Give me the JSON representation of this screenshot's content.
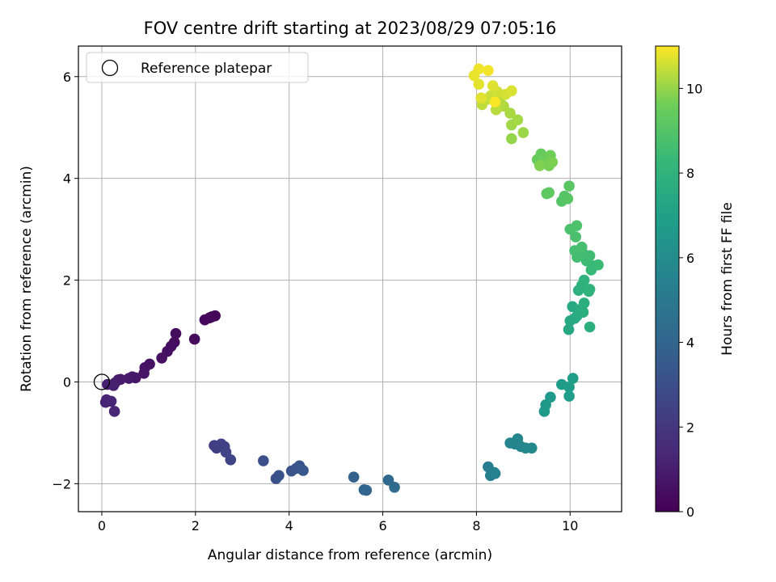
{
  "chart_data": {
    "type": "scatter",
    "title": "FOV centre drift starting at 2023/08/29 07:05:16",
    "xlabel": "Angular distance from reference (arcmin)",
    "ylabel": "Rotation from reference (arcmin)",
    "colorbar_label": "Hours from first FF file",
    "xlim": [
      -0.5,
      11.1
    ],
    "ylim": [
      -2.55,
      6.6
    ],
    "xticks": [
      0,
      2,
      4,
      6,
      8,
      10
    ],
    "yticks": [
      -2,
      0,
      2,
      4,
      6
    ],
    "colorbar_range": [
      0,
      11
    ],
    "colorbar_ticks": [
      0,
      2,
      4,
      6,
      8,
      10
    ],
    "colormap": "viridis",
    "grid": true,
    "legend": {
      "location": "upper-left",
      "entries": [
        {
          "label": "Reference platepar",
          "marker": "hollow-circle",
          "x": 0,
          "y": 0
        }
      ]
    },
    "series": [
      {
        "points": [
          [
            2.42,
            1.3,
            0.1
          ],
          [
            2.35,
            1.28,
            0.15
          ],
          [
            2.3,
            1.26,
            0.2
          ],
          [
            2.2,
            1.22,
            0.25
          ],
          [
            1.98,
            0.84,
            0.3
          ],
          [
            1.58,
            0.95,
            0.35
          ],
          [
            1.55,
            0.78,
            0.4
          ],
          [
            1.48,
            0.7,
            0.45
          ],
          [
            1.4,
            0.6,
            0.5
          ],
          [
            1.28,
            0.47,
            0.55
          ],
          [
            1.02,
            0.35,
            0.6
          ],
          [
            0.92,
            0.28,
            0.65
          ],
          [
            0.9,
            0.17,
            0.7
          ],
          [
            0.72,
            0.08,
            0.75
          ],
          [
            0.65,
            0.1,
            0.8
          ],
          [
            0.58,
            0.07,
            0.85
          ],
          [
            0.4,
            0.05,
            0.9
          ],
          [
            0.35,
            0.04,
            0.95
          ],
          [
            0.28,
            -0.02,
            1.0
          ],
          [
            0.25,
            -0.07,
            1.05
          ],
          [
            0.12,
            -0.05,
            1.1
          ],
          [
            0.08,
            -0.4,
            1.2
          ],
          [
            0.1,
            -0.35,
            1.25
          ],
          [
            0.2,
            -0.38,
            1.3
          ],
          [
            0.27,
            -0.58,
            1.35
          ],
          [
            2.4,
            -1.25,
            2.3
          ],
          [
            2.45,
            -1.3,
            2.35
          ],
          [
            2.55,
            -1.22,
            2.4
          ],
          [
            2.62,
            -1.27,
            2.45
          ],
          [
            2.65,
            -1.38,
            2.5
          ],
          [
            2.75,
            -1.53,
            2.55
          ],
          [
            3.45,
            -1.55,
            3.0
          ],
          [
            3.72,
            -1.9,
            3.1
          ],
          [
            3.78,
            -1.84,
            3.15
          ],
          [
            4.05,
            -1.75,
            3.2
          ],
          [
            4.15,
            -1.7,
            3.25
          ],
          [
            4.22,
            -1.65,
            3.3
          ],
          [
            4.3,
            -1.74,
            3.35
          ],
          [
            5.38,
            -1.87,
            3.9
          ],
          [
            5.6,
            -2.12,
            4.0
          ],
          [
            5.65,
            -2.13,
            4.05
          ],
          [
            6.12,
            -1.93,
            4.2
          ],
          [
            6.25,
            -2.07,
            4.3
          ],
          [
            8.25,
            -1.67,
            5.3
          ],
          [
            8.3,
            -1.84,
            5.35
          ],
          [
            8.4,
            -1.8,
            5.4
          ],
          [
            8.38,
            -1.78,
            5.45
          ],
          [
            8.72,
            -1.2,
            5.6
          ],
          [
            8.82,
            -1.22,
            5.65
          ],
          [
            8.88,
            -1.12,
            5.7
          ],
          [
            8.95,
            -1.27,
            5.75
          ],
          [
            9.05,
            -1.3,
            5.8
          ],
          [
            9.18,
            -1.3,
            5.85
          ],
          [
            9.45,
            -0.58,
            6.6
          ],
          [
            9.48,
            -0.45,
            6.65
          ],
          [
            9.58,
            -0.3,
            6.7
          ],
          [
            9.82,
            -0.05,
            6.8
          ],
          [
            9.98,
            -0.1,
            6.85
          ],
          [
            9.98,
            -0.28,
            6.9
          ],
          [
            10.06,
            0.07,
            6.95
          ],
          [
            9.97,
            1.03,
            7.4
          ],
          [
            10.0,
            1.2,
            7.45
          ],
          [
            10.05,
            1.48,
            7.5
          ],
          [
            10.1,
            1.25,
            7.55
          ],
          [
            10.15,
            1.3,
            7.6
          ],
          [
            10.2,
            1.42,
            7.65
          ],
          [
            10.28,
            1.37,
            7.7
          ],
          [
            10.3,
            1.55,
            7.75
          ],
          [
            10.42,
            1.08,
            7.8
          ],
          [
            10.18,
            1.8,
            7.85
          ],
          [
            10.25,
            1.9,
            7.9
          ],
          [
            10.3,
            2.0,
            7.95
          ],
          [
            10.4,
            1.78,
            8.0
          ],
          [
            10.42,
            1.82,
            8.05
          ],
          [
            10.5,
            2.28,
            8.3
          ],
          [
            10.45,
            2.2,
            8.35
          ],
          [
            10.6,
            2.3,
            8.4
          ],
          [
            10.35,
            2.38,
            8.45
          ],
          [
            10.42,
            2.48,
            8.5
          ],
          [
            10.28,
            2.52,
            8.55
          ],
          [
            10.15,
            2.45,
            8.6
          ],
          [
            10.1,
            2.58,
            8.65
          ],
          [
            10.25,
            2.65,
            8.7
          ],
          [
            10.12,
            2.85,
            8.75
          ],
          [
            10.0,
            3.0,
            8.8
          ],
          [
            10.14,
            3.07,
            8.85
          ],
          [
            9.82,
            3.55,
            9.0
          ],
          [
            9.88,
            3.65,
            9.05
          ],
          [
            9.95,
            3.6,
            9.1
          ],
          [
            9.98,
            3.85,
            9.15
          ],
          [
            9.5,
            3.7,
            9.2
          ],
          [
            9.55,
            3.72,
            9.25
          ],
          [
            9.3,
            4.37,
            9.4
          ],
          [
            9.38,
            4.48,
            9.45
          ],
          [
            9.45,
            4.4,
            9.5
          ],
          [
            9.52,
            4.3,
            9.55
          ],
          [
            9.58,
            4.45,
            9.6
          ],
          [
            9.4,
            4.28,
            9.65
          ],
          [
            9.55,
            4.25,
            9.7
          ],
          [
            9.62,
            4.32,
            9.75
          ],
          [
            9.35,
            4.25,
            9.8
          ],
          [
            8.75,
            4.78,
            10.0
          ],
          [
            9.0,
            4.9,
            10.05
          ],
          [
            8.75,
            5.05,
            10.1
          ],
          [
            8.88,
            5.15,
            10.15
          ],
          [
            8.72,
            5.28,
            10.2
          ],
          [
            8.58,
            5.42,
            10.25
          ],
          [
            8.5,
            5.5,
            10.3
          ],
          [
            8.42,
            5.35,
            10.35
          ],
          [
            8.12,
            5.45,
            10.4
          ],
          [
            8.22,
            5.55,
            10.45
          ],
          [
            8.3,
            5.62,
            10.5
          ],
          [
            8.45,
            5.7,
            10.55
          ],
          [
            8.62,
            5.65,
            10.6
          ],
          [
            8.75,
            5.72,
            10.65
          ],
          [
            8.35,
            5.82,
            10.7
          ],
          [
            8.1,
            5.58,
            10.72
          ],
          [
            8.05,
            5.85,
            10.75
          ],
          [
            7.95,
            6.02,
            10.8
          ],
          [
            8.05,
            6.15,
            10.85
          ],
          [
            8.25,
            6.12,
            10.9
          ],
          [
            8.4,
            5.5,
            10.95
          ]
        ]
      }
    ]
  }
}
